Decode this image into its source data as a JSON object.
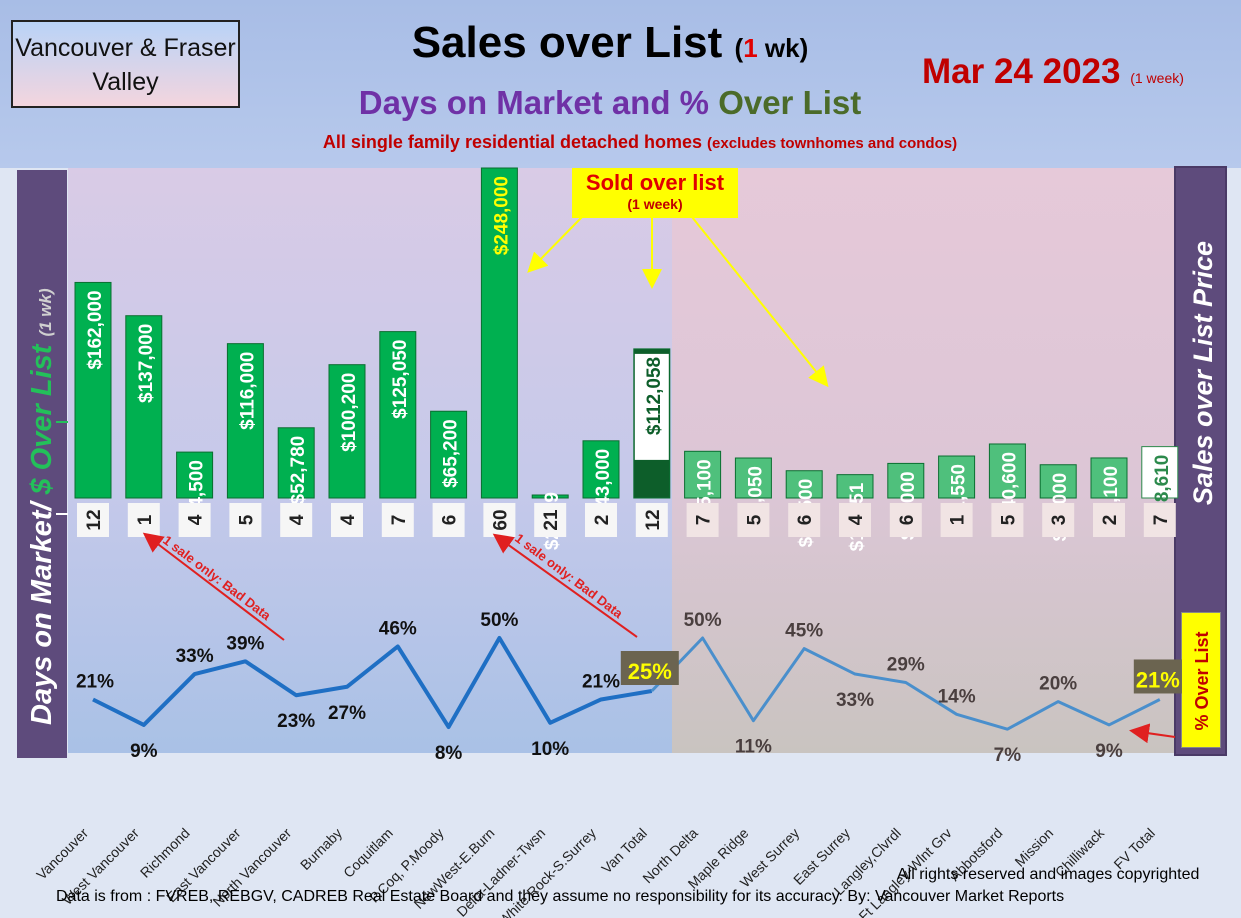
{
  "header": {
    "region": "Vancouver & Fraser Valley",
    "title": "Sales over List",
    "title_wk_num": "1",
    "title_wk_unit": "wk",
    "subtitle_part1": "Days on Market and %",
    "subtitle_part2": "Over List",
    "note": "All single family residential detached homes",
    "note_small": "(excludes townhomes and condos)",
    "date": "Mar 24  2023",
    "date_small": "(1 week)"
  },
  "side_labels": {
    "left_main": "Days on Market/",
    "left_green": "$ Over List",
    "left_small": "(1 wk)",
    "right": "Sales over List Price",
    "pct_box": "% Over List"
  },
  "callout": {
    "main": "Sold over list",
    "small": "(1 week)"
  },
  "annotations": {
    "bad_data": "1 sale only: Bad Data"
  },
  "footer": {
    "rights": "All rights reserved and  images copyrighted",
    "source": "Data is from : FVREB, REBGV, CADREB Real Estate Board and they assume no responsibility for its accuracy. By: Vancouver Market Reports"
  },
  "colors": {
    "bar_green": "#00b050",
    "bar_total": "#0d5e2a",
    "bar_fv": "#4fc07c",
    "line_van": "#1f6fc4",
    "line_fv": "#4a8fcc",
    "text_red": "#c00000",
    "label_yellow": "#ffff00"
  },
  "chart_data": {
    "type": "bar",
    "categories": [
      "Vancouver",
      "West Vancouver",
      "Richmond",
      "East Vancouver",
      "North Vancouver",
      "Burnaby",
      "Coquitlam",
      "P.Coq, P.Moody",
      "NewWest-E.Burn",
      "Delta-Ladner-Twsn",
      "White Rock-S.Surrey",
      "Van Total",
      "North Delta",
      "Maple Ridge",
      "West Surrey",
      "East Surrey",
      "Langley,Clvrdl",
      "Ft Langley-Wlnt Grv",
      "Abbotsford",
      "Mission",
      "Chilliwack",
      "FV Total"
    ],
    "series": [
      {
        "values": [
          162000,
          137000,
          34500,
          116000,
          52780,
          100200,
          125050,
          65200,
          248000,
          2109,
          43000,
          112058,
          35100,
          30050,
          20500,
          17551,
          26000,
          31550,
          40600,
          25000,
          30100,
          38610
        ]
      },
      {
        "values": [
          12,
          1,
          4,
          5,
          4,
          4,
          7,
          6,
          60,
          21,
          2,
          12,
          7,
          5,
          6,
          4,
          6,
          1,
          5,
          3,
          2,
          7
        ]
      },
      {
        "values": [
          21,
          9,
          33,
          39,
          23,
          27,
          46,
          8,
          50,
          10,
          21,
          25,
          50,
          11,
          45,
          33,
          29,
          14,
          7,
          20,
          9,
          21
        ]
      }
    ],
    "bar_labels": [
      "$162,000",
      "$137,000",
      "$34,500",
      "$116,000",
      "$52,780",
      "$100,200",
      "$125,050",
      "$65,200",
      "$248,000",
      "$2,109",
      "$43,000",
      "$112,058",
      "$35,100",
      "$30,050",
      "$20,500",
      "$17,551",
      "$26,000",
      "$31,550",
      "$40,600",
      "$25,000",
      "$30,100",
      "$38,610"
    ],
    "dom_labels": [
      "12",
      "1",
      "4",
      "5",
      "4",
      "4",
      "7",
      "6",
      "60",
      "21",
      "2",
      "12",
      "7",
      "5",
      "6",
      "4",
      "6",
      "1",
      "5",
      "3",
      "2",
      "7"
    ],
    "pct_labels": [
      "21%",
      "9%",
      "33%",
      "39%",
      "23%",
      "27%",
      "46%",
      "8%",
      "50%",
      "10%",
      "21%",
      "25%",
      "50%",
      "11%",
      "45%",
      "33%",
      "29%",
      "14%",
      "7%",
      "20%",
      "9%",
      "21%"
    ],
    "ylim_bar": [
      0,
      248000
    ],
    "ylim_pct": [
      0,
      100
    ]
  }
}
